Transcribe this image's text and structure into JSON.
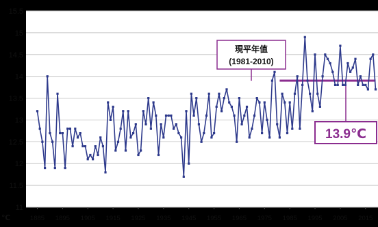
{
  "chart_data": {
    "type": "line",
    "title": "",
    "xlabel": "",
    "ylabel": "℃",
    "ylim": [
      11,
      15.5
    ],
    "xlim": [
      1885,
      2019
    ],
    "yticks": [
      "11",
      "11.5",
      "12",
      "12.5",
      "13",
      "13.5",
      "14",
      "14.5",
      "15",
      "15.5"
    ],
    "xticks": [
      "1885",
      "1895",
      "1905",
      "1915",
      "1925",
      "1935",
      "1945",
      "1955",
      "1965",
      "1975",
      "1985",
      "1995",
      "2005",
      "2015"
    ],
    "grid": true,
    "series": [
      {
        "name": "",
        "color": "#2e3a8c",
        "marker": "square",
        "x": [
          1885,
          1886,
          1887,
          1888,
          1889,
          1890,
          1891,
          1892,
          1893,
          1894,
          1895,
          1896,
          1897,
          1898,
          1899,
          1900,
          1901,
          1902,
          1903,
          1904,
          1905,
          1906,
          1907,
          1908,
          1909,
          1910,
          1911,
          1912,
          1913,
          1914,
          1915,
          1916,
          1917,
          1918,
          1919,
          1920,
          1921,
          1922,
          1923,
          1924,
          1925,
          1926,
          1927,
          1928,
          1929,
          1930,
          1931,
          1932,
          1933,
          1934,
          1935,
          1936,
          1937,
          1938,
          1939,
          1940,
          1941,
          1942,
          1943,
          1944,
          1945,
          1946,
          1947,
          1948,
          1949,
          1950,
          1951,
          1952,
          1953,
          1954,
          1955,
          1956,
          1957,
          1958,
          1959,
          1960,
          1961,
          1962,
          1963,
          1964,
          1965,
          1966,
          1967,
          1968,
          1969,
          1970,
          1971,
          1972,
          1973,
          1974,
          1975,
          1976,
          1977,
          1978,
          1979,
          1980,
          1981,
          1982,
          1983,
          1984,
          1985,
          1986,
          1987,
          1988,
          1989,
          1990,
          1991,
          1992,
          1993,
          1994,
          1995,
          1996,
          1997,
          1998,
          1999,
          2000,
          2001,
          2002,
          2003,
          2004,
          2005,
          2006,
          2007,
          2008,
          2009,
          2010,
          2011,
          2012,
          2013,
          2014,
          2015,
          2016,
          2017,
          2018,
          2019
        ],
        "values": [
          13.2,
          12.8,
          12.5,
          11.9,
          14.0,
          12.7,
          12.5,
          11.9,
          13.6,
          12.7,
          12.7,
          11.9,
          12.8,
          12.8,
          12.4,
          12.8,
          12.6,
          12.7,
          12.4,
          12.4,
          12.1,
          12.2,
          12.1,
          12.4,
          12.2,
          12.6,
          12.4,
          11.8,
          13.4,
          13.0,
          13.3,
          12.3,
          12.5,
          12.8,
          13.2,
          12.3,
          13.2,
          12.6,
          12.7,
          12.9,
          12.2,
          12.3,
          13.2,
          12.9,
          13.5,
          12.8,
          13.4,
          13.1,
          12.2,
          12.9,
          12.6,
          13.1,
          13.1,
          13.1,
          12.8,
          12.9,
          12.7,
          12.6,
          11.7,
          13.2,
          12.0,
          13.6,
          13.1,
          13.5,
          12.9,
          12.5,
          12.7,
          13.1,
          13.6,
          12.6,
          12.7,
          13.3,
          13.6,
          13.2,
          13.5,
          13.7,
          13.4,
          13.3,
          13.1,
          12.5,
          13.5,
          12.9,
          13.1,
          13.3,
          12.6,
          12.8,
          13.1,
          13.5,
          13.4,
          12.7,
          13.4,
          13.0,
          12.6,
          13.9,
          14.1,
          12.9,
          12.6,
          13.6,
          13.4,
          12.7,
          13.4,
          12.8,
          13.6,
          14.0,
          12.8,
          13.8,
          14.9,
          13.9,
          13.6,
          13.2,
          14.5,
          13.6,
          13.3,
          14.0,
          14.5,
          14.4,
          14.3,
          14.1,
          13.8,
          13.8,
          14.7,
          13.8,
          13.8,
          14.3,
          14.1,
          14.2,
          14.4,
          13.8,
          14.0,
          13.8,
          13.8,
          13.7,
          14.4,
          14.5,
          13.7
        ]
      }
    ],
    "reference_line": {
      "value": 13.9,
      "color": "#8b2d8f"
    },
    "reference_label_line1": "現平年值",
    "reference_label_line2": "(1981-2010)",
    "reference_value_label": "13.9℃"
  }
}
